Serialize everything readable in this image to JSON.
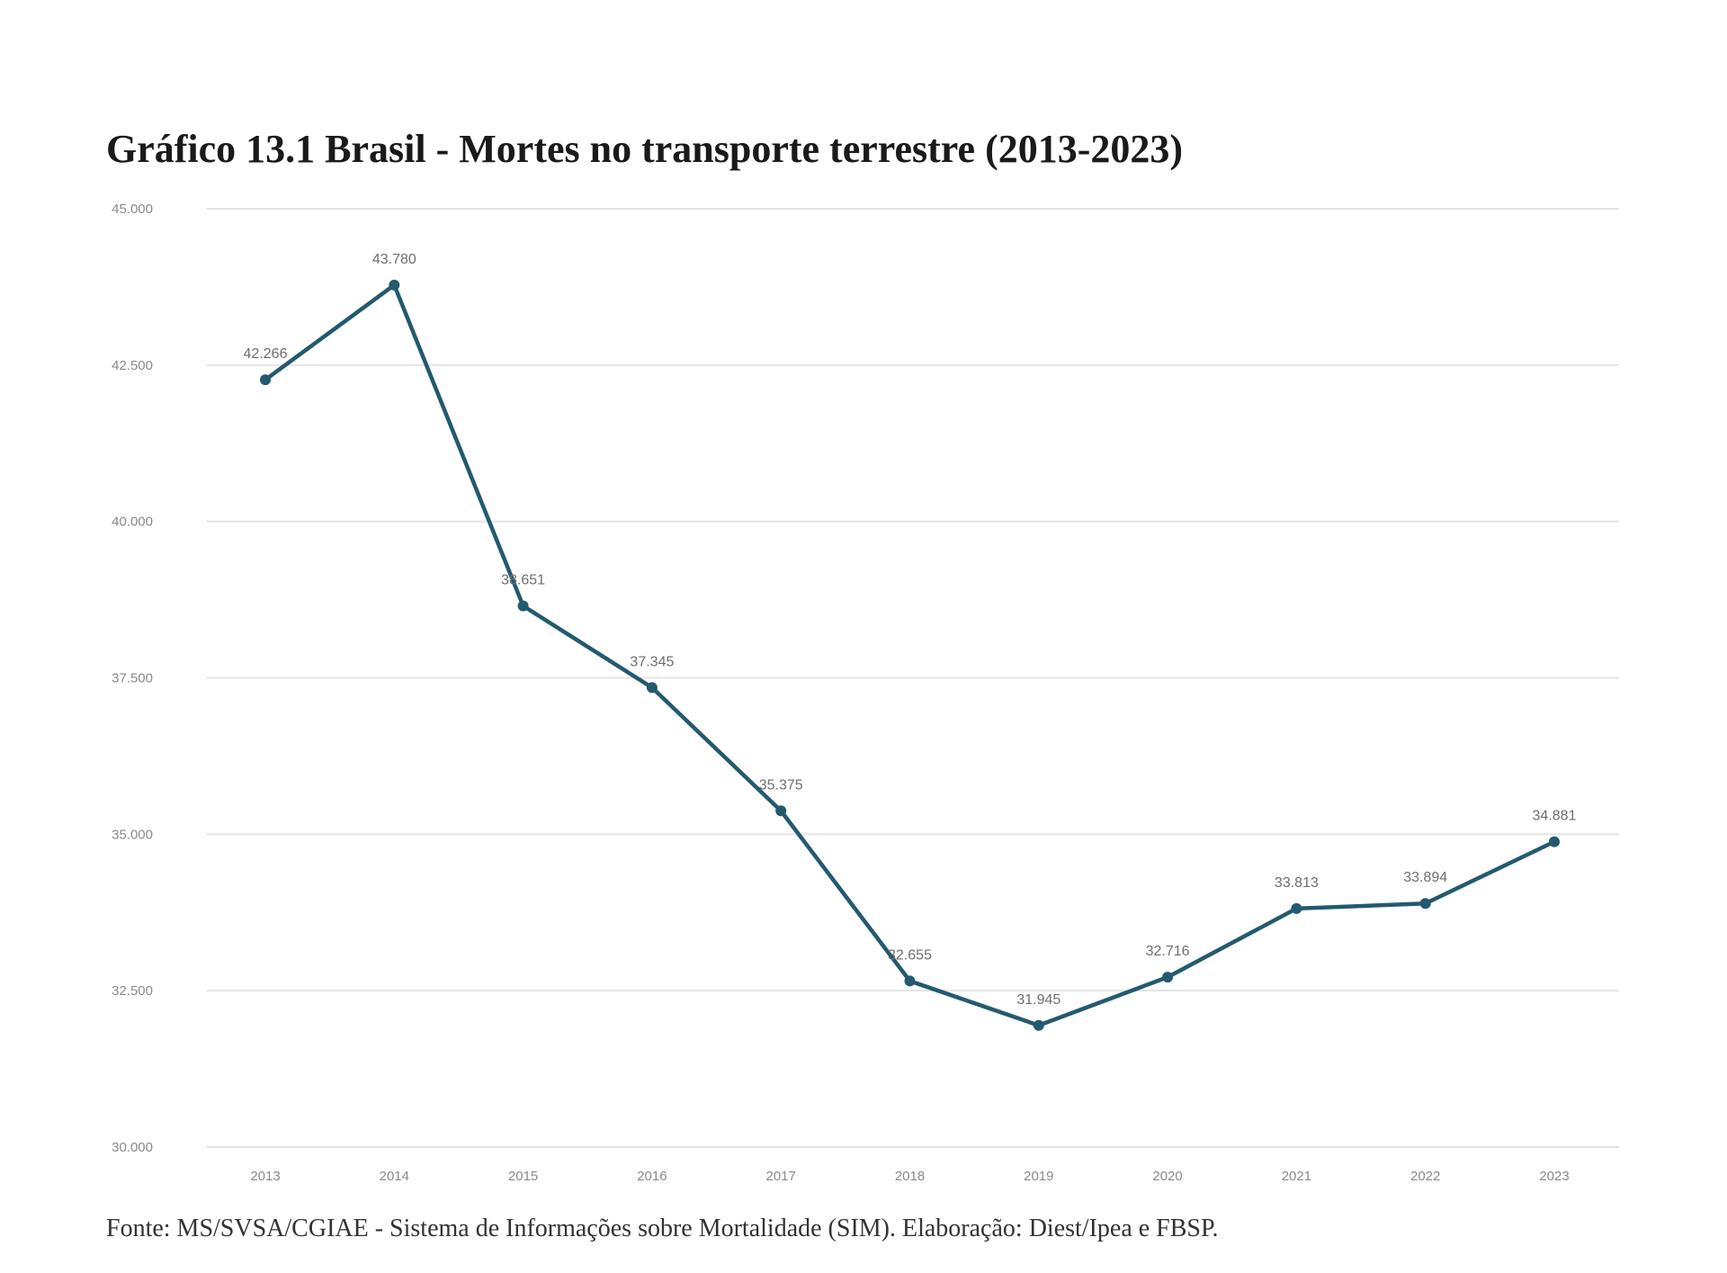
{
  "title": "Gráfico 13.1 Brasil - Mortes no transporte terrestre (2013-2023)",
  "source": "Fonte: MS/SVSA/CGIAE - Sistema de Informações sobre Mortalidade (SIM). Elaboração: Diest/Ipea e FBSP.",
  "colors": {
    "line": "#235a6f",
    "grid": "#e4e4e4",
    "tick_text": "#8a8a8a"
  },
  "chart_data": {
    "type": "line",
    "title": "Gráfico 13.1 Brasil - Mortes no transporte terrestre (2013-2023)",
    "xlabel": "",
    "ylabel": "",
    "categories": [
      "2013",
      "2014",
      "2015",
      "2016",
      "2017",
      "2018",
      "2019",
      "2020",
      "2021",
      "2022",
      "2023"
    ],
    "series": [
      {
        "values": [
          42266,
          43780,
          38651,
          37345,
          35375,
          32655,
          31945,
          32716,
          33813,
          33894,
          34881
        ],
        "labels": [
          "42.266",
          "43.780",
          "38.651",
          "37.345",
          "35.375",
          "32.655",
          "31.945",
          "32.716",
          "33.813",
          "33.894",
          "34.881"
        ]
      }
    ],
    "ylim": [
      30000,
      45000
    ],
    "yticks": [
      30000,
      32500,
      35000,
      37500,
      40000,
      42500,
      45000
    ],
    "ytick_labels": [
      "30.000",
      "32.500",
      "35.000",
      "37.500",
      "40.000",
      "42.500",
      "45.000"
    ],
    "grid": true,
    "legend": "none"
  }
}
